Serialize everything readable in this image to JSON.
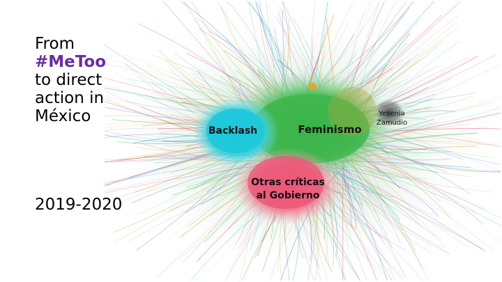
{
  "slide": {
    "title_lines": [
      "From",
      "#MeToo",
      "to direct",
      "action in",
      "México"
    ],
    "years": "2019-2020"
  },
  "network": {
    "clusters": [
      {
        "label": "Backlash",
        "color": "#1ec9dc"
      },
      {
        "label": "Feminismo",
        "color": "#3bb54a"
      },
      {
        "label": "Yesenia Zamudio",
        "color": "#555555"
      },
      {
        "label": "Otras críticas al Gobierno",
        "color": "#ee5a78"
      }
    ],
    "label_lines": {
      "backlash": "Backlash",
      "feminismo": "Feminismo",
      "yesenia_1": "Yesenia",
      "yesenia_2": "Zamudio",
      "otras_1": "Otras críticas",
      "otras_2": "al Gobierno"
    },
    "accent_colors": {
      "olive": "#b8a33a",
      "orange": "#f0a020",
      "purple": "#c67be0",
      "blue": "#3a6fd8"
    }
  }
}
